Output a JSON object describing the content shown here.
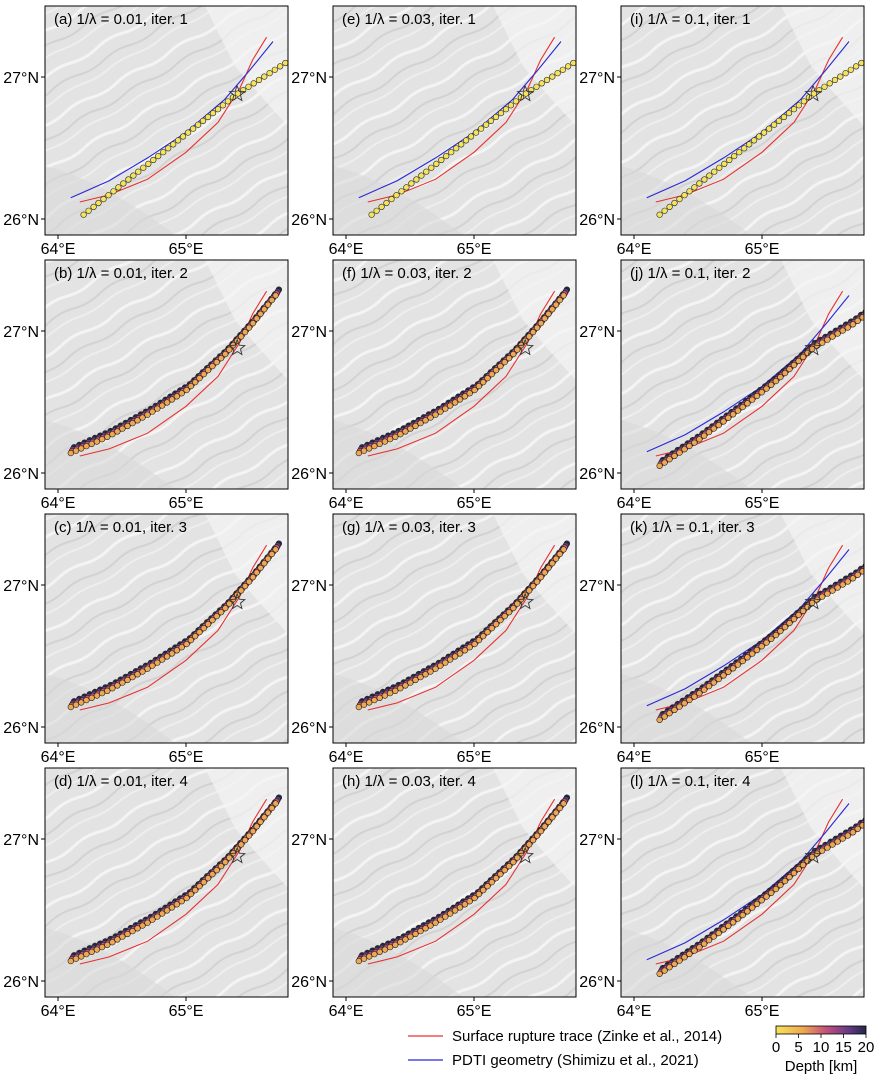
{
  "figure": {
    "panels": [
      {
        "label": "(a) 1/λ = 0.01, iter. 1",
        "lambda_inv": 0.01,
        "iteration": 1
      },
      {
        "label": "(b) 1/λ = 0.01, iter. 2",
        "lambda_inv": 0.01,
        "iteration": 2
      },
      {
        "label": "(c) 1/λ = 0.01, iter. 3",
        "lambda_inv": 0.01,
        "iteration": 3
      },
      {
        "label": "(d) 1/λ = 0.01, iter. 4",
        "lambda_inv": 0.01,
        "iteration": 4
      },
      {
        "label": "(e) 1/λ = 0.03, iter. 1",
        "lambda_inv": 0.03,
        "iteration": 1
      },
      {
        "label": "(f) 1/λ = 0.03, iter. 2",
        "lambda_inv": 0.03,
        "iteration": 2
      },
      {
        "label": "(g) 1/λ = 0.03, iter. 3",
        "lambda_inv": 0.03,
        "iteration": 3
      },
      {
        "label": "(h) 1/λ = 0.03, iter. 4",
        "lambda_inv": 0.03,
        "iteration": 4
      },
      {
        "label": "(i) 1/λ = 0.1, iter. 1",
        "lambda_inv": 0.1,
        "iteration": 1
      },
      {
        "label": "(j) 1/λ = 0.1, iter. 2",
        "lambda_inv": 0.1,
        "iteration": 2
      },
      {
        "label": "(k) 1/λ = 0.1, iter. 3",
        "lambda_inv": 0.1,
        "iteration": 3
      },
      {
        "label": "(l) 1/λ = 0.1, iter. 4",
        "lambda_inv": 0.1,
        "iteration": 4
      }
    ],
    "x_ticks": [
      "64°E",
      "65°E"
    ],
    "y_ticks": [
      "26°N",
      "27°N"
    ],
    "legend": {
      "red_label": "Surface rupture trace (Zinke et al., 2014)",
      "blue_label": "PDTI geometry (Shimizu et al., 2021)",
      "colorbar_title": "Depth [km]",
      "colorbar_ticks": [
        "0",
        "5",
        "10",
        "15",
        "20"
      ]
    },
    "colors": {
      "red_trace": "#e83030",
      "blue_trace": "#2828d8",
      "panel_bg": "#e6e6e6"
    }
  }
}
